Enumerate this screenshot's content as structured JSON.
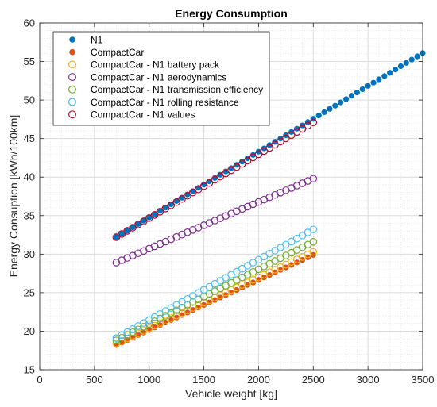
{
  "chart_data": {
    "type": "scatter",
    "title": "Energy Consumption",
    "xlabel": "Vehicle weight [kg]",
    "ylabel": "Energy Consuption [kWh/100km]",
    "xlim": [
      0,
      3500
    ],
    "ylim": [
      15,
      60
    ],
    "xticks": [
      0,
      500,
      1000,
      1500,
      2000,
      2500,
      3000,
      3500
    ],
    "yticks": [
      15,
      20,
      25,
      30,
      35,
      40,
      45,
      50,
      55,
      60
    ],
    "grid": true,
    "minor_grid": true,
    "legend_position": "top-left",
    "series": [
      {
        "name": "N1",
        "marker": "filled",
        "color": "#0072BD",
        "x_start": 700,
        "x_end": 3500,
        "x_step": 50,
        "y_start": 32.2,
        "y_end": 56.1
      },
      {
        "name": "CompactCar",
        "marker": "filled",
        "color": "#D95319",
        "x_start": 700,
        "x_end": 2500,
        "x_step": 50,
        "y_start": 18.2,
        "y_end": 29.9
      },
      {
        "name": "CompactCar - N1 battery pack",
        "marker": "open",
        "color": "#EDB120",
        "x_start": 700,
        "x_end": 2500,
        "x_step": 50,
        "y_start": 18.4,
        "y_end": 30.3
      },
      {
        "name": "CompactCar - N1 aerodynamics",
        "marker": "open",
        "color": "#7E2F8E",
        "x_start": 700,
        "x_end": 2500,
        "x_step": 50,
        "y_start": 28.9,
        "y_end": 39.8
      },
      {
        "name": "CompactCar - N1 transmission efficiency",
        "marker": "open",
        "color": "#77AC30",
        "x_start": 700,
        "x_end": 2500,
        "x_step": 50,
        "y_start": 18.8,
        "y_end": 31.6
      },
      {
        "name": "CompactCar - N1 rolling resistance",
        "marker": "open",
        "color": "#4DBEEE",
        "x_start": 700,
        "x_end": 2500,
        "x_step": 50,
        "y_start": 19.1,
        "y_end": 33.2
      },
      {
        "name": "CompactCar - N1 values",
        "marker": "open",
        "color": "#A2142F",
        "x_start": 700,
        "x_end": 2500,
        "x_step": 50,
        "y_start": 32.2,
        "y_end": 47.1
      }
    ]
  }
}
